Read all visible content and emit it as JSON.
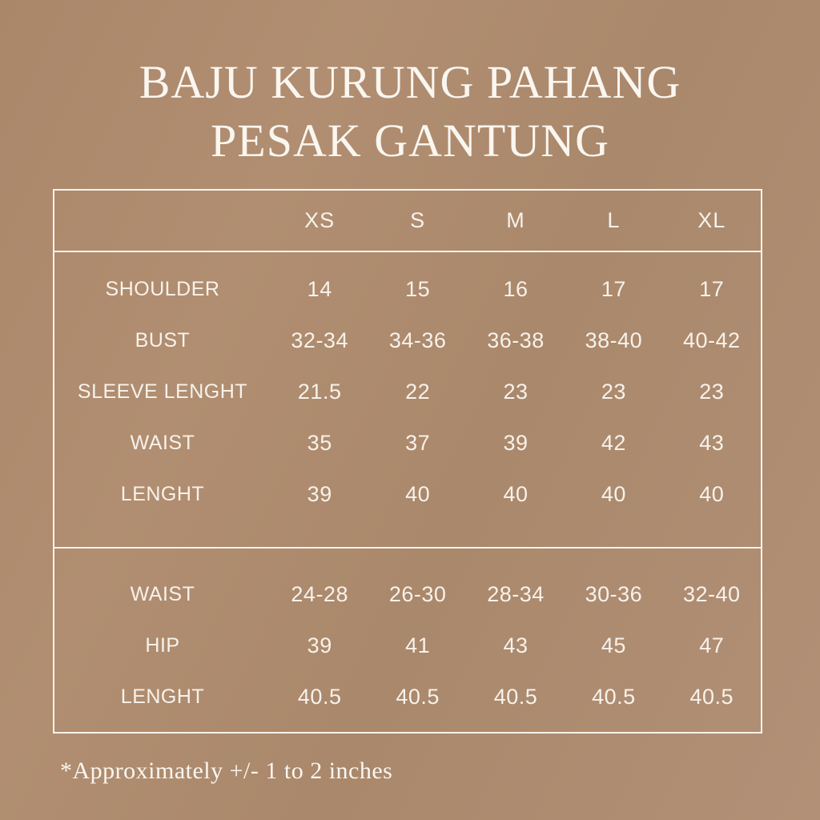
{
  "theme": {
    "background_color": "#ac886c",
    "border_color": "#f7f2eb",
    "text_color": "#f7f2eb",
    "title_color": "#faf6f0"
  },
  "chart_data": {
    "type": "table",
    "title": "BAJU KURUNG PAHANG PESAK GANTUNG",
    "title_line1": "BAJU KURUNG PAHANG",
    "title_line2": "PESAK GANTUNG",
    "size_columns": [
      "XS",
      "S",
      "M",
      "L",
      "XL"
    ],
    "sections": [
      {
        "rows": [
          {
            "label": "SHOULDER",
            "values": [
              "14",
              "15",
              "16",
              "17",
              "17"
            ]
          },
          {
            "label": "BUST",
            "values": [
              "32-34",
              "34-36",
              "36-38",
              "38-40",
              "40-42"
            ]
          },
          {
            "label": "SLEEVE LENGHT",
            "values": [
              "21.5",
              "22",
              "23",
              "23",
              "23"
            ]
          },
          {
            "label": "WAIST",
            "values": [
              "35",
              "37",
              "39",
              "42",
              "43"
            ]
          },
          {
            "label": "LENGHT",
            "values": [
              "39",
              "40",
              "40",
              "40",
              "40"
            ]
          }
        ]
      },
      {
        "rows": [
          {
            "label": "WAIST",
            "values": [
              "24-28",
              "26-30",
              "28-34",
              "30-36",
              "32-40"
            ]
          },
          {
            "label": "HIP",
            "values": [
              "39",
              "41",
              "43",
              "45",
              "47"
            ]
          },
          {
            "label": "LENGHT",
            "values": [
              "40.5",
              "40.5",
              "40.5",
              "40.5",
              "40.5"
            ]
          }
        ]
      }
    ],
    "footnote": "*Approximately +/- 1 to 2 inches",
    "layout_hints": {
      "grid": "off",
      "header_position": "top-row",
      "sections_divided": true
    }
  }
}
